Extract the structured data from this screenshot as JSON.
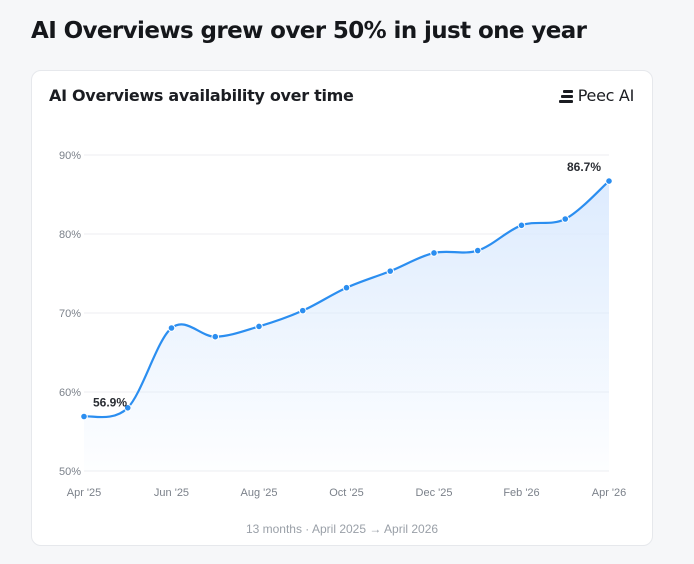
{
  "headline": "AI Overviews grew over 50% in just one year",
  "card": {
    "title": "AI Overviews availability over time",
    "brand": "Peec AI",
    "caption": "13 months · April 2025 → April 2026"
  },
  "colors": {
    "line": "#2b8ef0",
    "area": "#dbeafe",
    "grid": "#eceef1"
  },
  "chart_data": {
    "type": "line",
    "title": "AI Overviews availability over time",
    "x": [
      "Apr '25",
      "May '25",
      "Jun '25",
      "Jul '25",
      "Aug '25",
      "Sep '25",
      "Oct '25",
      "Nov '25",
      "Dec '25",
      "Jan '26",
      "Feb '26",
      "Mar '26",
      "Apr '26"
    ],
    "x_tick_labels": [
      "Apr '25",
      "Jun '25",
      "Aug '25",
      "Oct '25",
      "Dec '25",
      "Feb '26",
      "Apr '26"
    ],
    "series": [
      {
        "values": [
          56.9,
          58.0,
          68.1,
          67.0,
          68.3,
          70.3,
          73.2,
          75.3,
          77.6,
          77.9,
          81.1,
          81.9,
          86.7
        ]
      }
    ],
    "y_tick_labels": [
      "90%",
      "80%",
      "70%",
      "60%",
      "50%"
    ],
    "ylim": [
      50,
      90
    ],
    "grid": true,
    "annotations": [
      {
        "index": 0,
        "text": "56.9%"
      },
      {
        "index": 12,
        "text": "86.7%"
      }
    ]
  }
}
